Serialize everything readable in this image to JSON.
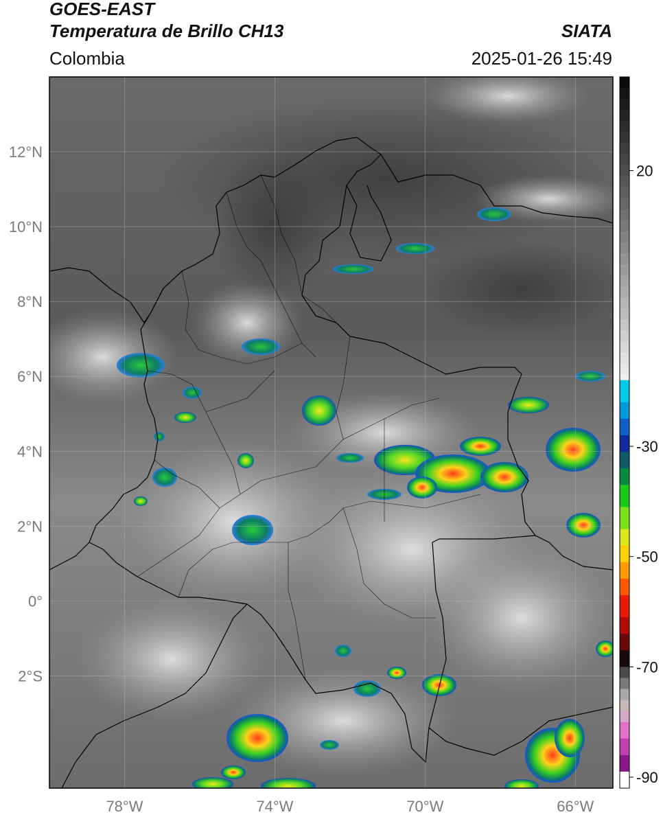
{
  "header": {
    "satellite": "GOES-EAST",
    "product": "Temperatura de Brillo CH13",
    "region": "Colombia",
    "agency": "SIATA",
    "datetime": "2025-01-26 15:49"
  },
  "map": {
    "lon_range": [
      -80,
      -65
    ],
    "lat_range": [
      -5,
      14
    ],
    "lat_labels": [
      "12°N",
      "10°N",
      "8°N",
      "6°N",
      "4°N",
      "2°N",
      "0°",
      "2°S"
    ],
    "lat_values": [
      12,
      10,
      8,
      6,
      4,
      2,
      0,
      -2
    ],
    "lon_labels": [
      "78°W",
      "74°W",
      "70°W",
      "66°W"
    ],
    "lon_values": [
      -78,
      -74,
      -70,
      -66
    ]
  },
  "colorbar": {
    "tick_labels": [
      "20",
      "-30",
      "-50",
      "-70",
      "-90"
    ],
    "tick_values": [
      20,
      -30,
      -50,
      -70,
      -90
    ],
    "range": [
      -92,
      37
    ]
  },
  "colors": {
    "frame": "#000000",
    "grid": "#bfbfbf",
    "axis_text": "#7a7a7a",
    "border": "#000000"
  }
}
